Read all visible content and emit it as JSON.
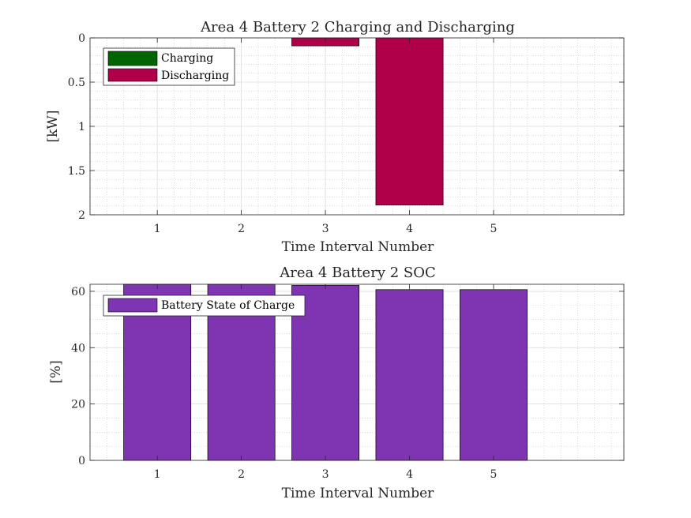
{
  "chart_data": [
    {
      "type": "bar",
      "title": "Area 4 Battery 2 Charging and Discharging",
      "xlabel": "Time Interval Number",
      "ylabel": "[kW]",
      "x_ticks": [
        1,
        2,
        3,
        4,
        5
      ],
      "xlim": [
        0.2,
        6.55
      ],
      "y_ticks": [
        0,
        0.5,
        1,
        1.5,
        2
      ],
      "y_tick_labels": [
        "0",
        "0.5",
        "1",
        "1.5",
        "2"
      ],
      "ylim": [
        0,
        2
      ],
      "y_reversed": true,
      "grid": true,
      "minor_grid": true,
      "legend_position": "top-left",
      "series": [
        {
          "name": "Charging",
          "color": "#006400",
          "x": [
            1,
            2,
            3,
            4,
            5
          ],
          "values": [
            0,
            0,
            0,
            0,
            0
          ]
        },
        {
          "name": "Discharging",
          "color": "#b0004a",
          "x": [
            1,
            2,
            3,
            4,
            5
          ],
          "values": [
            0,
            0,
            0.09,
            1.89,
            0
          ]
        }
      ]
    },
    {
      "type": "bar",
      "title": "Area 4 Battery 2 SOC",
      "xlabel": "Time Interval Number",
      "ylabel": "[%]",
      "x_ticks": [
        1,
        2,
        3,
        4,
        5
      ],
      "xlim": [
        0.2,
        6.55
      ],
      "y_ticks": [
        0,
        20,
        40,
        60
      ],
      "y_tick_labels": [
        "0",
        "20",
        "40",
        "60"
      ],
      "ylim": [
        0,
        62.5
      ],
      "grid": true,
      "minor_grid": true,
      "legend_position": "top-left",
      "series": [
        {
          "name": "Battery State of Charge",
          "color": "#7f35b2",
          "x": [
            1,
            2,
            3,
            4,
            5
          ],
          "values": [
            62.5,
            62.5,
            62.1,
            60.6,
            60.6
          ]
        }
      ]
    }
  ]
}
